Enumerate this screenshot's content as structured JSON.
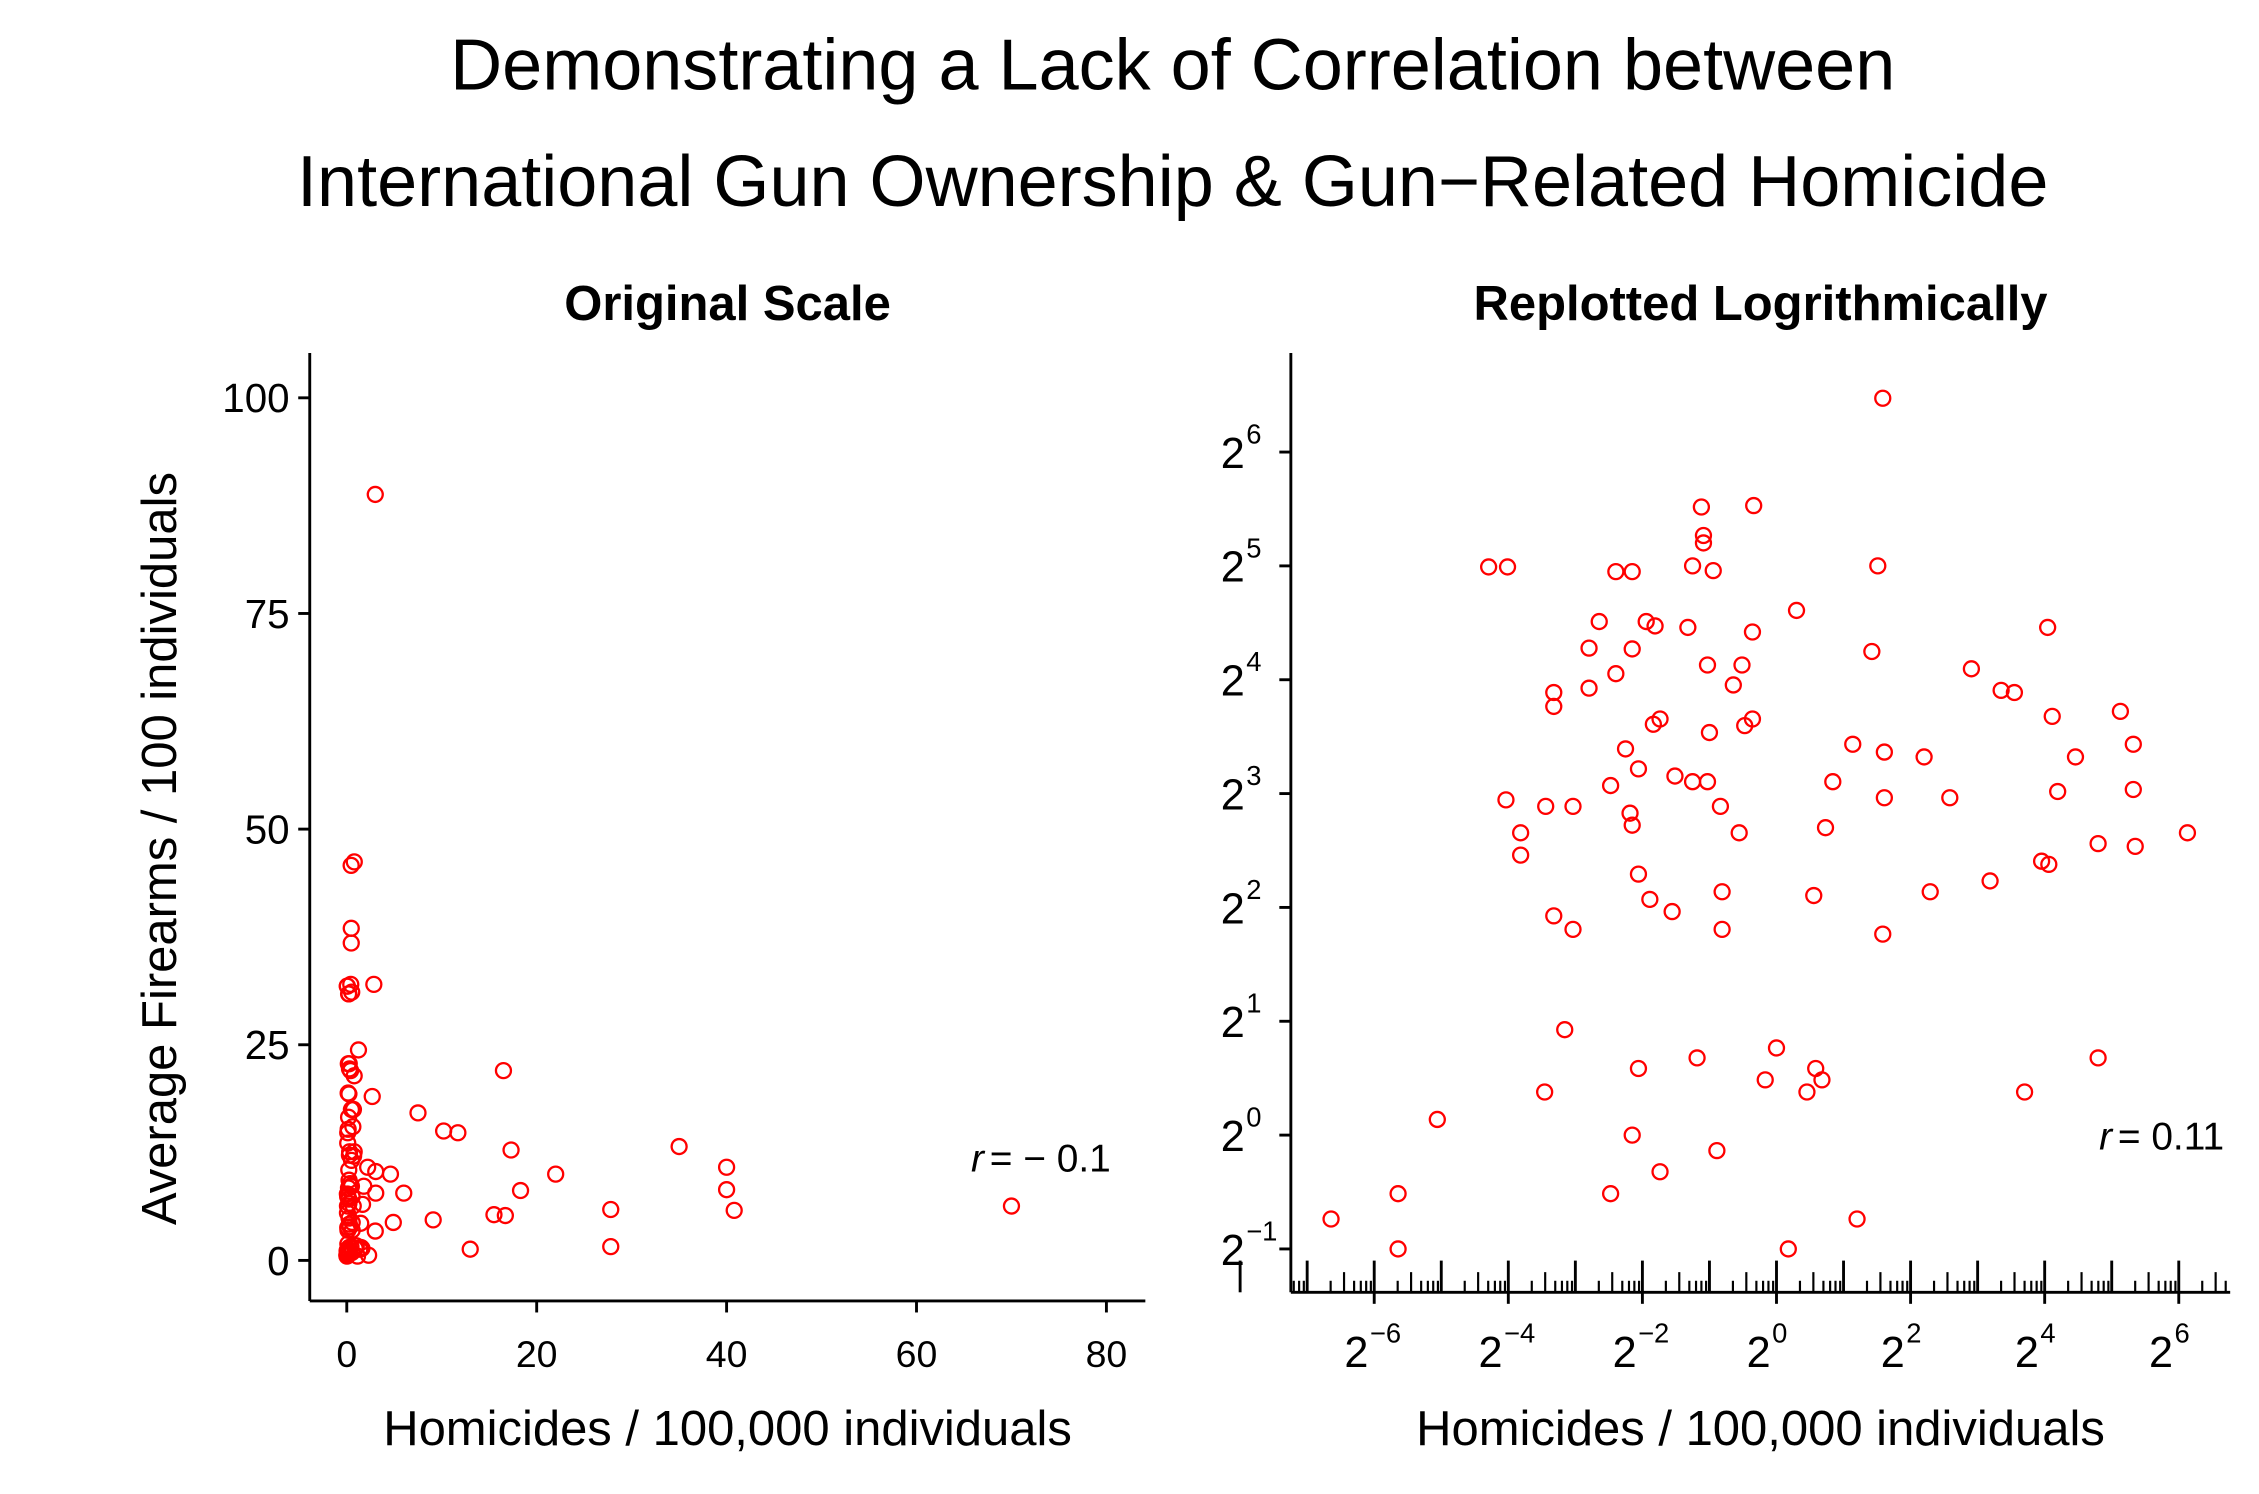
{
  "title_lines": [
    "Demonstrating a Lack of Correlation between",
    "International Gun Ownership & Gun−Related Homicide"
  ],
  "chart_data": [
    {
      "type": "scatter",
      "title": "Original Scale",
      "x_label": "Homicides / 100,000 individuals",
      "y_label": "Average Firearms / 100 individuals",
      "annotation_symbol": "r",
      "annotation": "= − 0.1",
      "color": "#ff0000",
      "xlim": [
        -3.9,
        84.1
      ],
      "ylim": [
        -4.7,
        105.2
      ],
      "xticks": [
        0,
        20,
        40,
        60,
        80
      ],
      "yticks": [
        0,
        25,
        50,
        75,
        100
      ],
      "x": [
        3.0,
        0.46,
        0.79,
        0.47,
        0.47,
        0.051,
        0.062,
        0.42,
        0.19,
        0.225,
        0.52,
        2.85,
        0.16,
        0.26,
        0.285,
        0.4,
        1.23,
        16.5,
        0.144,
        0.225,
        0.78,
        2.68,
        0.1,
        0.1,
        0.144,
        0.19,
        0.49,
        0.7,
        0.64,
        7.5,
        10.2,
        11.7,
        0.28,
        0.3,
        0.78,
        0.72,
        0.5,
        17.3,
        35,
        0.21,
        2.2,
        3.05,
        4.6,
        22,
        40,
        0.24,
        0.35,
        0.42,
        0.49,
        0.18,
        1.79,
        3.05,
        6.0,
        18.3,
        40,
        0.061,
        0.092,
        0.122,
        0.22,
        0.225,
        0.56,
        0.68,
        1.66,
        27.8,
        40.8,
        70,
        0.071,
        0.071,
        15.5,
        16.7,
        9.1,
        0.24,
        0.27,
        0.34,
        0.57,
        1.47,
        4.9,
        0.1,
        0.122,
        0.57,
        3.0,
        0.112,
        0.24,
        0.44,
        1.0,
        0.89,
        1.5,
        1.6,
        1.37,
        0.091,
        13.0,
        27.8,
        0.03,
        0.225,
        0.54,
        0.02,
        0.18,
        0.3,
        0.01,
        0.02,
        1.13,
        2.3
      ],
      "y": [
        88.8,
        45.8,
        46.2,
        38.5,
        36.8,
        31.8,
        31.8,
        32,
        30.9,
        30.9,
        31.1,
        32,
        22.8,
        22.8,
        22.2,
        22,
        24.4,
        22,
        19.4,
        19.3,
        21.4,
        19.0,
        14.8,
        13.6,
        15.2,
        16.6,
        17.5,
        17.5,
        15.5,
        17.1,
        15,
        14.8,
        12.2,
        12.6,
        12.6,
        12.1,
        11.6,
        12.8,
        13.2,
        10.5,
        10.8,
        10.3,
        10,
        10,
        10.8,
        9.3,
        8.9,
        8.6,
        8.6,
        8.4,
        8.6,
        7.8,
        7.8,
        8.1,
        8.2,
        7.7,
        7.4,
        7.4,
        7.1,
        6.6,
        7.4,
        6.3,
        6.5,
        5.9,
        5.8,
        6.3,
        6.3,
        5.5,
        5.3,
        5.2,
        4.7,
        4.9,
        4.2,
        3.9,
        4.4,
        4.3,
        4.4,
        3.8,
        3.5,
        3.5,
        3.4,
        1.9,
        1.5,
        1.6,
        1.7,
        1.4,
        1.5,
        1.4,
        1.3,
        1.3,
        1.3,
        1.6,
        1.1,
        1.0,
        0.91,
        0.7,
        0.7,
        0.8,
        0.6,
        0.5,
        0.5,
        0.6
      ]
    },
    {
      "type": "scatter",
      "title": "Replotted Logrithmically",
      "x_label": "Homicides / 100,000 individuals",
      "annotation_symbol": "r",
      "annotation": "= 0.11",
      "color": "#ff0000",
      "log_base": 2,
      "xlim": [
        0.0066,
        108.9
      ],
      "ylim": [
        0.384,
        117
      ],
      "xticks": [
        {
          "value": 0.015625,
          "label": "2",
          "exponent": "−6"
        },
        {
          "value": 0.0625,
          "label": "2",
          "exponent": "−4"
        },
        {
          "value": 0.25,
          "label": "2",
          "exponent": "−2"
        },
        {
          "value": 1,
          "label": "2",
          "exponent": "0"
        },
        {
          "value": 4,
          "label": "2",
          "exponent": "2"
        },
        {
          "value": 16,
          "label": "2",
          "exponent": "4"
        },
        {
          "value": 64,
          "label": "2",
          "exponent": "6"
        }
      ],
      "yticks": [
        {
          "value": 0.5,
          "label": "2",
          "exponent": "−1"
        },
        {
          "value": 1,
          "label": "2",
          "exponent": "0"
        },
        {
          "value": 2,
          "label": "2",
          "exponent": "1"
        },
        {
          "value": 4,
          "label": "2",
          "exponent": "2"
        },
        {
          "value": 8,
          "label": "2",
          "exponent": "3"
        },
        {
          "value": 16,
          "label": "2",
          "exponent": "4"
        },
        {
          "value": 32,
          "label": "2",
          "exponent": "5"
        },
        {
          "value": 64,
          "label": "2",
          "exponent": "6"
        }
      ],
      "x": [
        3.0,
        0.46,
        0.79,
        0.47,
        0.47,
        0.051,
        0.062,
        0.42,
        0.19,
        0.225,
        0.52,
        2.85,
        0.16,
        0.26,
        0.285,
        0.4,
        1.23,
        16.5,
        0.144,
        0.225,
        0.78,
        2.68,
        0.1,
        0.1,
        0.144,
        0.19,
        0.49,
        0.7,
        0.64,
        7.5,
        10.2,
        11.7,
        0.28,
        0.3,
        0.78,
        0.72,
        0.5,
        17.3,
        35,
        0.21,
        2.2,
        3.05,
        4.6,
        22,
        40,
        0.24,
        0.35,
        0.42,
        0.49,
        0.18,
        1.79,
        3.05,
        6.0,
        18.3,
        40,
        0.061,
        0.092,
        0.122,
        0.22,
        0.225,
        0.56,
        0.68,
        1.66,
        27.8,
        40.8,
        70,
        0.071,
        0.071,
        15.5,
        16.7,
        9.1,
        0.24,
        0.27,
        0.34,
        0.57,
        1.47,
        4.9,
        0.1,
        0.122,
        0.57,
        3.0,
        0.112,
        0.24,
        0.44,
        1.0,
        0.89,
        1.5,
        1.6,
        1.37,
        0.091,
        13.0,
        27.8,
        0.03,
        0.225,
        0.54,
        0.02,
        0.18,
        0.3,
        0.01,
        0.02,
        1.13,
        2.3
      ],
      "y": [
        88.8,
        45.8,
        46.2,
        38.5,
        36.8,
        31.8,
        31.8,
        32,
        30.9,
        30.9,
        31.1,
        32,
        22.8,
        22.8,
        22.2,
        22,
        24.4,
        22,
        19.4,
        19.3,
        21.4,
        19.0,
        14.8,
        13.6,
        15.2,
        16.6,
        17.5,
        17.5,
        15.5,
        17.1,
        15,
        14.8,
        12.2,
        12.6,
        12.6,
        12.1,
        11.6,
        12.8,
        13.2,
        10.5,
        10.8,
        10.3,
        10,
        10,
        10.8,
        9.3,
        8.9,
        8.6,
        8.6,
        8.4,
        8.6,
        7.8,
        7.8,
        8.1,
        8.2,
        7.7,
        7.4,
        7.4,
        7.1,
        6.6,
        7.4,
        6.3,
        6.5,
        5.9,
        5.8,
        6.3,
        6.3,
        5.5,
        5.3,
        5.2,
        4.7,
        4.9,
        4.2,
        3.9,
        4.4,
        4.3,
        4.4,
        3.8,
        3.5,
        3.5,
        3.4,
        1.9,
        1.5,
        1.6,
        1.7,
        1.4,
        1.5,
        1.4,
        1.3,
        1.3,
        1.3,
        1.6,
        1.1,
        1.0,
        0.91,
        0.7,
        0.7,
        0.8,
        0.6,
        0.5,
        0.5,
        0.6
      ]
    }
  ]
}
